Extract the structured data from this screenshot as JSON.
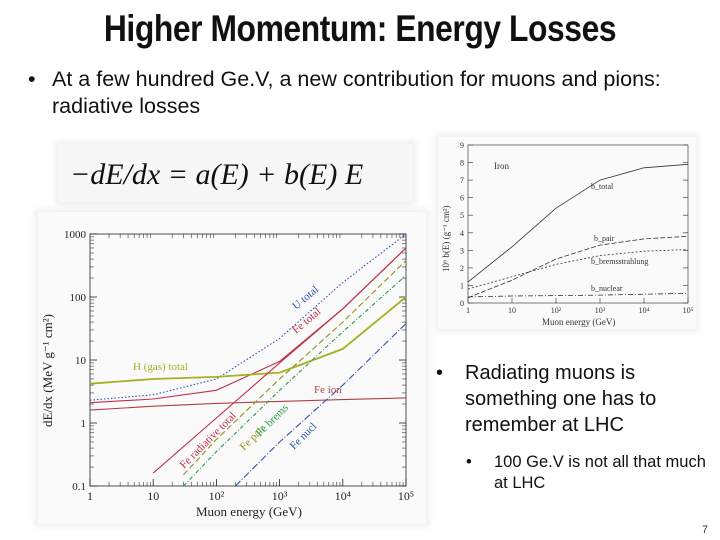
{
  "slide": {
    "title": "Higher Momentum: Energy Losses",
    "bullet_main": "At a few hundred Ge.V, a new contribution for muons and pions: radiative losses",
    "bullet_right": "Radiating muons is something one has to remember at LHC",
    "sub_bullet": "100 Ge.V is not all that much at LHC",
    "bullet_glyph": "•",
    "page_number": "7"
  },
  "formula": {
    "text": "−dE/dx = a(E) + b(E) E"
  },
  "chart_data": [
    {
      "type": "line",
      "xlabel": "Muon energy (GeV)",
      "ylabel": "dE/dx  (MeV g⁻¹ cm²)",
      "xscale": "log",
      "yscale": "log",
      "xlim": [
        1,
        100000
      ],
      "ylim": [
        0.1,
        1000
      ],
      "x_ticks": [
        "1",
        "10",
        "10²",
        "10³",
        "10⁴",
        "10⁵"
      ],
      "y_ticks": [
        "0.1",
        "1",
        "10",
        "100",
        "1000"
      ],
      "series": [
        {
          "name": "U total",
          "color": "#2a4fb0",
          "x": [
            1,
            10,
            100,
            1000,
            10000,
            100000
          ],
          "y": [
            2.3,
            2.8,
            5.0,
            22,
            170,
            1000
          ]
        },
        {
          "name": "Fe total",
          "color": "#c0304a",
          "x": [
            1,
            10,
            100,
            1000,
            10000,
            100000
          ],
          "y": [
            2.1,
            2.4,
            3.3,
            9.5,
            65,
            600
          ]
        },
        {
          "name": "H (gas) total",
          "color": "#a6b020",
          "x": [
            1,
            10,
            100,
            1000,
            10000,
            100000
          ],
          "y": [
            4.2,
            5.0,
            5.4,
            6.3,
            15,
            100
          ]
        },
        {
          "name": "Fe ion",
          "color": "#b04040",
          "x": [
            1,
            10,
            100,
            1000,
            10000,
            100000
          ],
          "y": [
            1.6,
            1.85,
            2.05,
            2.2,
            2.35,
            2.5
          ]
        },
        {
          "name": "Fe radiative total",
          "color": "#c0304a",
          "x": [
            10,
            100,
            1000,
            10000,
            100000
          ],
          "y": [
            0.16,
            1.2,
            9,
            65,
            600
          ]
        },
        {
          "name": "Fe pair",
          "color": "#909020",
          "x": [
            30,
            100,
            1000,
            10000,
            100000
          ],
          "y": [
            0.15,
            0.55,
            5,
            40,
            380
          ]
        },
        {
          "name": "Fe brems",
          "color": "#2a9a4a",
          "x": [
            30,
            100,
            1000,
            10000,
            100000
          ],
          "y": [
            0.1,
            0.35,
            3.3,
            28,
            220
          ]
        },
        {
          "name": "Fe nucl",
          "color": "#2a4fb0",
          "x": [
            200,
            1000,
            10000,
            100000
          ],
          "y": [
            0.1,
            0.5,
            4,
            38
          ]
        }
      ]
    },
    {
      "type": "line",
      "xlabel": "Muon energy (GeV)",
      "ylabel": "10⁶ b(E)  (g⁻¹ cm²)",
      "xscale": "log",
      "xlim": [
        1,
        100000
      ],
      "ylim": [
        0,
        9
      ],
      "x_ticks": [
        "1",
        "10",
        "10²",
        "10³",
        "10⁴",
        "10⁵"
      ],
      "y_ticks": [
        "0",
        "1",
        "2",
        "3",
        "4",
        "5",
        "6",
        "7",
        "8",
        "9"
      ],
      "annotation": "Iron",
      "series": [
        {
          "name": "b_total",
          "color": "#333333",
          "x": [
            1,
            10,
            100,
            1000,
            10000,
            100000
          ],
          "y": [
            1.2,
            3.2,
            5.4,
            7.0,
            7.7,
            7.9
          ]
        },
        {
          "name": "b_pair",
          "color": "#333333",
          "x": [
            1,
            10,
            100,
            1000,
            10000,
            100000
          ],
          "y": [
            0.3,
            1.3,
            2.5,
            3.3,
            3.65,
            3.8
          ]
        },
        {
          "name": "b_bremsstrahlung",
          "color": "#333333",
          "x": [
            1,
            10,
            100,
            1000,
            10000,
            100000
          ],
          "y": [
            0.8,
            1.5,
            2.2,
            2.7,
            2.95,
            3.05
          ]
        },
        {
          "name": "b_nuclear",
          "color": "#333333",
          "x": [
            1,
            10,
            100,
            1000,
            10000,
            100000
          ],
          "y": [
            0.35,
            0.4,
            0.42,
            0.45,
            0.5,
            0.55
          ]
        }
      ]
    }
  ]
}
